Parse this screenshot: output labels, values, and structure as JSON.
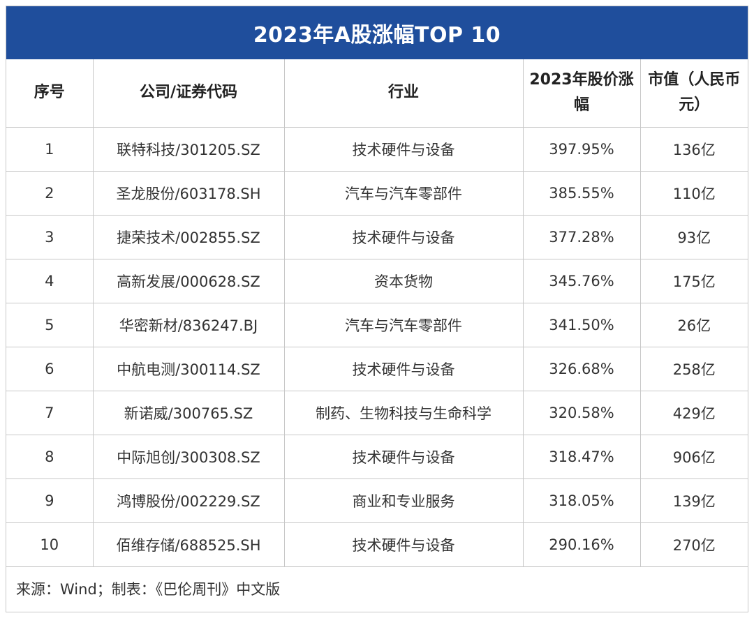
{
  "title": "2023年A股涨幅TOP 10",
  "headers": {
    "rank": "序号",
    "company": "公司/证券代码",
    "industry": "行业",
    "gain": "2023年股价涨幅",
    "market_cap": "市值（人民币元）"
  },
  "rows": [
    {
      "rank": "1",
      "company": "联特科技/301205.SZ",
      "industry": "技术硬件与设备",
      "gain": "397.95%",
      "market_cap": "136亿"
    },
    {
      "rank": "2",
      "company": "圣龙股份/603178.SH",
      "industry": "汽车与汽车零部件",
      "gain": "385.55%",
      "market_cap": "110亿"
    },
    {
      "rank": "3",
      "company": "捷荣技术/002855.SZ",
      "industry": "技术硬件与设备",
      "gain": "377.28%",
      "market_cap": "93亿"
    },
    {
      "rank": "4",
      "company": "高新发展/000628.SZ",
      "industry": "资本货物",
      "gain": "345.76%",
      "market_cap": "175亿"
    },
    {
      "rank": "5",
      "company": "华密新材/836247.BJ",
      "industry": "汽车与汽车零部件",
      "gain": "341.50%",
      "market_cap": "26亿"
    },
    {
      "rank": "6",
      "company": "中航电测/300114.SZ",
      "industry": "技术硬件与设备",
      "gain": "326.68%",
      "market_cap": "258亿"
    },
    {
      "rank": "7",
      "company": "新诺威/300765.SZ",
      "industry": "制药、生物科技与生命科学",
      "gain": "320.58%",
      "market_cap": "429亿"
    },
    {
      "rank": "8",
      "company": "中际旭创/300308.SZ",
      "industry": "技术硬件与设备",
      "gain": "318.47%",
      "market_cap": "906亿"
    },
    {
      "rank": "9",
      "company": "鸿博股份/002229.SZ",
      "industry": "商业和专业服务",
      "gain": "318.05%",
      "market_cap": "139亿"
    },
    {
      "rank": "10",
      "company": "佰维存储/688525.SH",
      "industry": "技术硬件与设备",
      "gain": "290.16%",
      "market_cap": "270亿"
    }
  ],
  "source": "来源：Wind；制表：《巴伦周刊》中文版",
  "colors": {
    "title_bg": "#1f4e9c",
    "title_text": "#ffffff",
    "border": "#c8c8c8"
  }
}
